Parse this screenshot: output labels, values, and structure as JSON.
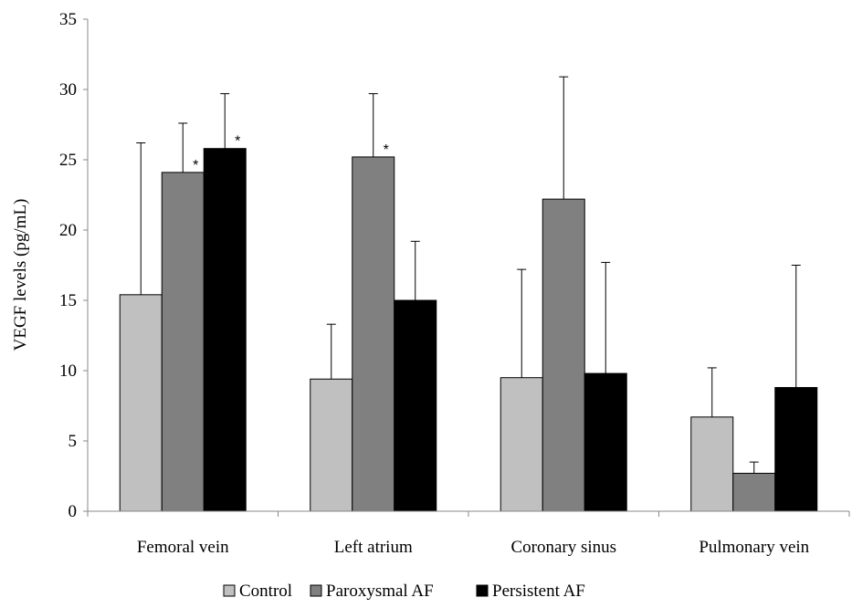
{
  "chart_data": {
    "type": "bar",
    "title": "",
    "xlabel": "",
    "ylabel": "VEGF levels (pg/mL)",
    "ylim": [
      0,
      35
    ],
    "yticks": [
      0,
      5,
      10,
      15,
      20,
      25,
      30,
      35
    ],
    "grid": false,
    "legend_position": "bottom",
    "categories": [
      "Femoral vein",
      "Left atrium",
      "Coronary sinus",
      "Pulmonary vein"
    ],
    "series": [
      {
        "name": "Control",
        "color": "#c0c0c0",
        "values": [
          15.4,
          9.4,
          9.5,
          6.7
        ],
        "error": [
          10.8,
          3.9,
          7.7,
          3.5
        ],
        "significance": [
          "",
          "",
          "",
          ""
        ]
      },
      {
        "name": "Paroxysmal AF",
        "color": "#808080",
        "values": [
          24.1,
          25.2,
          22.2,
          2.7
        ],
        "error": [
          3.5,
          4.5,
          8.7,
          0.8
        ],
        "significance": [
          "*",
          "*",
          "",
          ""
        ]
      },
      {
        "name": "Persistent AF",
        "color": "#000000",
        "values": [
          25.8,
          15.0,
          9.8,
          8.8
        ],
        "error": [
          3.9,
          4.2,
          7.9,
          8.7
        ],
        "significance": [
          "*",
          "",
          "",
          ""
        ]
      }
    ]
  }
}
